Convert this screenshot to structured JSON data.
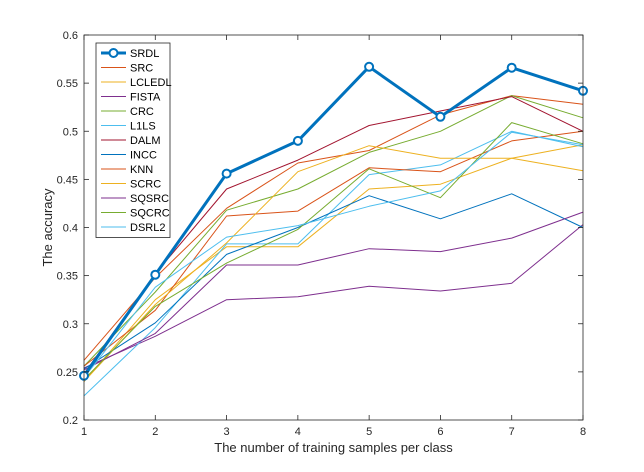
{
  "chart_data": {
    "type": "line",
    "title": "",
    "xlabel": "The number of training samples per class",
    "ylabel": "The accuracy",
    "x": [
      1,
      2,
      3,
      4,
      5,
      6,
      7,
      8
    ],
    "xlim": [
      1,
      8
    ],
    "ylim": [
      0.2,
      0.6
    ],
    "xticks": [
      "1",
      "2",
      "3",
      "4",
      "5",
      "6",
      "7",
      "8"
    ],
    "yticks": [
      "0.2",
      "0.25",
      "0.3",
      "0.35",
      "0.4",
      "0.45",
      "0.5",
      "0.55",
      "0.6"
    ],
    "grid": false,
    "legend_position": "top-left",
    "series": [
      {
        "name": "SRDL",
        "color": "#0072BD",
        "values": [
          0.246,
          0.351,
          0.456,
          0.49,
          0.567,
          0.515,
          0.566,
          0.542
        ],
        "emphasis": true
      },
      {
        "name": "SRC",
        "color": "#D95319",
        "values": [
          0.262,
          0.348,
          0.42,
          0.467,
          0.48,
          0.517,
          0.537,
          0.528
        ]
      },
      {
        "name": "LCLEDL",
        "color": "#EDB120",
        "values": [
          0.24,
          0.325,
          0.38,
          0.38,
          0.44,
          0.445,
          0.472,
          0.486
        ]
      },
      {
        "name": "FISTA",
        "color": "#7E2F8E",
        "values": [
          0.254,
          0.287,
          0.325,
          0.328,
          0.339,
          0.334,
          0.342,
          0.403
        ]
      },
      {
        "name": "CRC",
        "color": "#77AC30",
        "values": [
          0.256,
          0.333,
          0.418,
          0.44,
          0.478,
          0.5,
          0.537,
          0.514
        ]
      },
      {
        "name": "L1LS",
        "color": "#4DBEEE",
        "values": [
          0.225,
          0.296,
          0.383,
          0.383,
          0.455,
          0.465,
          0.5,
          0.484
        ]
      },
      {
        "name": "DALM",
        "color": "#A2142F",
        "values": [
          0.248,
          0.352,
          0.44,
          0.47,
          0.506,
          0.521,
          0.536,
          0.5
        ]
      },
      {
        "name": "INCC",
        "color": "#0072BD",
        "values": [
          0.253,
          0.301,
          0.372,
          0.4,
          0.433,
          0.409,
          0.435,
          0.4
        ]
      },
      {
        "name": "KNN",
        "color": "#D95319",
        "values": [
          0.256,
          0.314,
          0.412,
          0.417,
          0.462,
          0.458,
          0.49,
          0.5
        ]
      },
      {
        "name": "SCRC",
        "color": "#EDB120",
        "values": [
          0.24,
          0.32,
          0.384,
          0.458,
          0.485,
          0.472,
          0.472,
          0.459
        ]
      },
      {
        "name": "SQSRC",
        "color": "#7E2F8E",
        "values": [
          0.252,
          0.29,
          0.361,
          0.361,
          0.378,
          0.375,
          0.389,
          0.416
        ]
      },
      {
        "name": "SQCRC",
        "color": "#77AC30",
        "values": [
          0.242,
          0.318,
          0.363,
          0.398,
          0.461,
          0.431,
          0.509,
          0.487
        ]
      },
      {
        "name": "DSRL2",
        "color": "#4DBEEE",
        "values": [
          0.244,
          0.338,
          0.39,
          0.402,
          0.422,
          0.438,
          0.499,
          0.486
        ]
      }
    ]
  }
}
